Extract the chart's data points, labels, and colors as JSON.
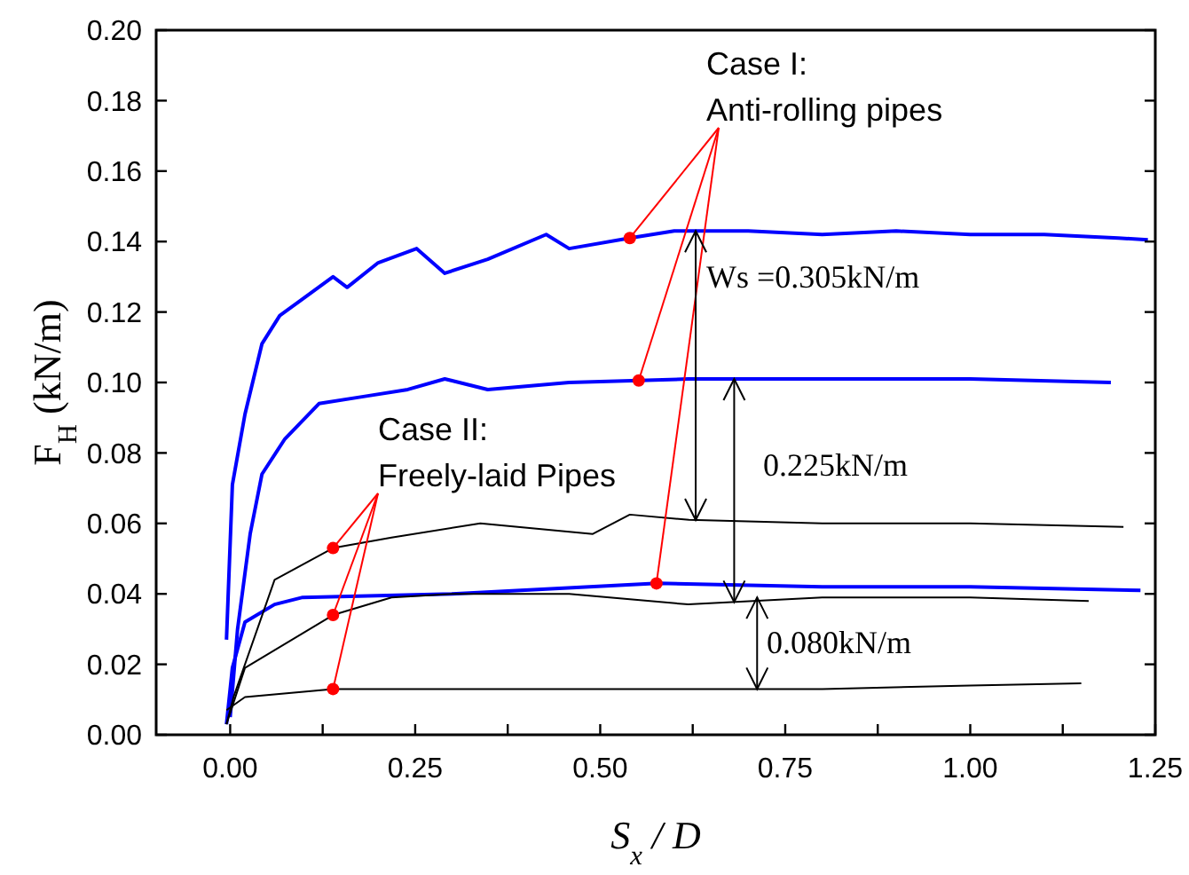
{
  "chart_data": {
    "type": "line",
    "xlabel": "S$_{x}$ / D",
    "ylabel": "F$_{H}$ (kN/m)",
    "xlim": [
      -0.1,
      1.25
    ],
    "xticks": [
      {
        "value": 0,
        "label": "0.00"
      },
      {
        "value": 0.125,
        "label": null
      },
      0.25,
      {
        "value": 0.375,
        "label": null
      },
      {
        "value": 0.5,
        "label": "0.50"
      },
      {
        "value": 0.625,
        "label": null
      },
      0.75,
      {
        "value": 0.875,
        "label": null
      },
      {
        "value": 1,
        "label": "1.00"
      },
      {
        "value": 1.125,
        "label": null
      },
      1.25
    ],
    "ylim": [
      0,
      0.2
    ],
    "yticks": [
      {
        "value": 0,
        "label": "0.00"
      },
      0.02,
      0.04,
      0.06,
      0.08,
      {
        "value": 0.1,
        "label": "0.10"
      },
      0.12,
      0.14,
      0.16,
      0.18,
      {
        "value": 0.2,
        "label": "0.20"
      }
    ],
    "grid": false,
    "marker": "none",
    "line_style": "solid",
    "annotations": [
      {
        "text": "Case I:\nAnti-rolling pipes",
        "x": 0.54,
        "y": 0.141
      },
      {
        "text": "Case II:\nFreely-laid Pipes",
        "x": 0.139,
        "y": 0.053
      },
      {
        "text": "Ws =0.305kN/m",
        "x": 0.629,
        "y": 0.143
      },
      {
        "text": "0.225kN/m",
        "x": 0.681,
        "y": 0.101
      },
      {
        "text": "0.080kN/m",
        "x": 0.712,
        "y": 0.039
      }
    ],
    "series": [
      {
        "color": "#0000ff",
        "x": [
          -0.005,
          0.003,
          0.02,
          0.043,
          0.067,
          0.1,
          0.139,
          0.158,
          0.2,
          0.252,
          0.29,
          0.348,
          0.427,
          0.458,
          0.54,
          0.6,
          0.7,
          0.8,
          0.9,
          1.0,
          1.1,
          1.2,
          1.24
        ],
        "values": [
          0.027,
          0.071,
          0.091,
          0.111,
          0.119,
          0.124,
          0.13,
          0.127,
          0.134,
          0.138,
          0.131,
          0.135,
          0.142,
          0.138,
          0.141,
          0.143,
          0.143,
          0.142,
          0.143,
          0.142,
          0.142,
          0.141,
          0.1405
        ]
      },
      {
        "color": "#0000ff",
        "x": [
          0.0,
          0.01,
          0.027,
          0.043,
          0.074,
          0.12,
          0.18,
          0.24,
          0.29,
          0.348,
          0.458,
          0.619,
          0.8,
          1.0,
          1.19
        ],
        "values": [
          0.005,
          0.03,
          0.057,
          0.074,
          0.084,
          0.094,
          0.096,
          0.098,
          0.101,
          0.098,
          0.1,
          0.101,
          0.101,
          0.101,
          0.1
        ]
      },
      {
        "color": "#0000ff",
        "x": [
          -0.005,
          0.003,
          0.02,
          0.06,
          0.098,
          0.3,
          0.578,
          0.8,
          1.0,
          1.23
        ],
        "values": [
          0.003,
          0.019,
          0.032,
          0.037,
          0.039,
          0.04,
          0.043,
          0.042,
          0.042,
          0.041
        ]
      },
      {
        "color": "#000000",
        "x": [
          -0.005,
          0.005,
          0.06,
          0.139,
          0.218,
          0.338,
          0.49,
          0.54,
          0.62,
          0.8,
          1.0,
          1.207
        ],
        "values": [
          0.003,
          0.011,
          0.044,
          0.053,
          0.056,
          0.06,
          0.057,
          0.0625,
          0.061,
          0.06,
          0.06,
          0.059
        ]
      },
      {
        "color": "#000000",
        "x": [
          -0.005,
          0.02,
          0.06,
          0.139,
          0.218,
          0.3,
          0.458,
          0.619,
          0.8,
          1.0,
          1.16
        ],
        "values": [
          0.003,
          0.019,
          0.024,
          0.034,
          0.039,
          0.04,
          0.04,
          0.037,
          0.039,
          0.039,
          0.038
        ]
      },
      {
        "color": "#000000",
        "x": [
          -0.005,
          0.02,
          0.139,
          0.3,
          0.5,
          0.8,
          1.0,
          1.15
        ],
        "values": [
          0.007,
          0.0107,
          0.013,
          0.013,
          0.013,
          0.013,
          0.014,
          0.0146
        ]
      }
    ]
  }
}
